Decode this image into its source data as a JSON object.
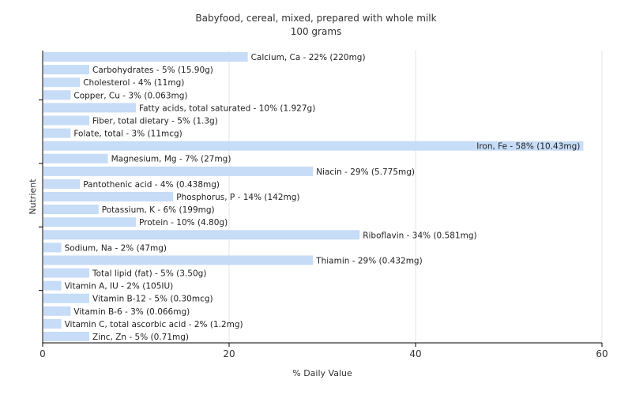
{
  "chart_data": {
    "type": "bar",
    "orientation": "horizontal",
    "title": "Babyfood, cereal, mixed, prepared with whole milk",
    "subtitle": "100 grams",
    "xlabel": "% Daily Value",
    "ylabel": "Nutrient",
    "xlim": [
      0,
      60
    ],
    "xticks": [
      "0",
      "20",
      "40",
      "60"
    ],
    "grid": true,
    "bar_color": "#c6dcf7",
    "categories": [
      "Calcium, Ca",
      "Carbohydrates",
      "Cholesterol",
      "Copper, Cu",
      "Fatty acids, total saturated",
      "Fiber, total dietary",
      "Folate, total",
      "Iron, Fe",
      "Magnesium, Mg",
      "Niacin",
      "Pantothenic acid",
      "Phosphorus, P",
      "Potassium, K",
      "Protein",
      "Riboflavin",
      "Sodium, Na",
      "Thiamin",
      "Total lipid (fat)",
      "Vitamin A, IU",
      "Vitamin B-12",
      "Vitamin B-6",
      "Vitamin C, total ascorbic acid",
      "Zinc, Zn"
    ],
    "values": [
      22,
      5,
      4,
      3,
      10,
      5,
      3,
      58,
      7,
      29,
      4,
      14,
      6,
      10,
      34,
      2,
      29,
      5,
      2,
      5,
      3,
      2,
      5
    ],
    "labels": [
      "Calcium, Ca - 22% (220mg)",
      "Carbohydrates - 5% (15.90g)",
      "Cholesterol - 4% (11mg)",
      "Copper, Cu - 3% (0.063mg)",
      "Fatty acids, total saturated - 10% (1.927g)",
      "Fiber, total dietary - 5% (1.3g)",
      "Folate, total - 3% (11mcg)",
      "Iron, Fe - 58% (10.43mg)",
      "Magnesium, Mg - 7% (27mg)",
      "Niacin - 29% (5.775mg)",
      "Pantothenic acid - 4% (0.438mg)",
      "Phosphorus, P - 14% (142mg)",
      "Potassium, K - 6% (199mg)",
      "Protein - 10% (4.80g)",
      "Riboflavin - 34% (0.581mg)",
      "Sodium, Na - 2% (47mg)",
      "Thiamin - 29% (0.432mg)",
      "Total lipid (fat) - 5% (3.50g)",
      "Vitamin A, IU - 2% (105IU)",
      "Vitamin B-12 - 5% (0.30mcg)",
      "Vitamin B-6 - 3% (0.066mg)",
      "Vitamin C, total ascorbic acid - 2% (1.2mg)",
      "Zinc, Zn - 5% (0.71mg)"
    ]
  }
}
